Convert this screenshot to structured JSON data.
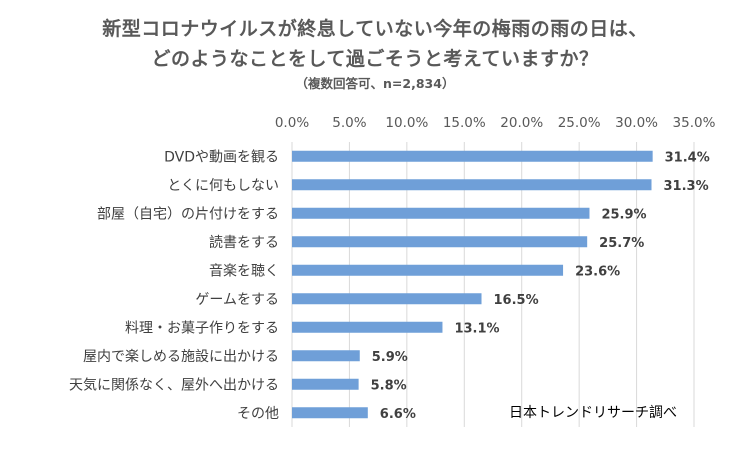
{
  "chart_data": {
    "type": "bar",
    "orientation": "horizontal",
    "title_lines": [
      "新型コロナウイルスが終息していない今年の梅雨の雨の日は、",
      "どのようなことをして過ごそうと考えていますか？"
    ],
    "subtitle": "（複数回答可、n=2,834）",
    "categories": [
      "DVDや動画を観る",
      "とくに何もしない",
      "部屋（自宅）の片付けをする",
      "読書をする",
      "音楽を聴く",
      "ゲームをする",
      "料理・お菓子作りをする",
      "屋内で楽しめる施設に出かける",
      "天気に関係なく、屋外へ出かける",
      "その他"
    ],
    "values": [
      31.4,
      31.3,
      25.9,
      25.7,
      23.6,
      16.5,
      13.1,
      5.9,
      5.8,
      6.6
    ],
    "data_labels": [
      "31.4%",
      "31.3%",
      "25.9%",
      "25.7%",
      "23.6%",
      "16.5%",
      "13.1%",
      "5.9%",
      "5.8%",
      "6.6%"
    ],
    "xlim": [
      0,
      35
    ],
    "x_ticks": [
      "0.0%",
      "5.0%",
      "10.0%",
      "15.0%",
      "20.0%",
      "25.0%",
      "30.0%",
      "35.0%"
    ],
    "x_axis_position": "top",
    "grid": true,
    "bar_color": "#6f9fd8",
    "grid_color": "#d9d9d9",
    "text_color": "#595959",
    "label_color": "#404040",
    "annotation": "日本トレンドリサーチ調べ"
  }
}
